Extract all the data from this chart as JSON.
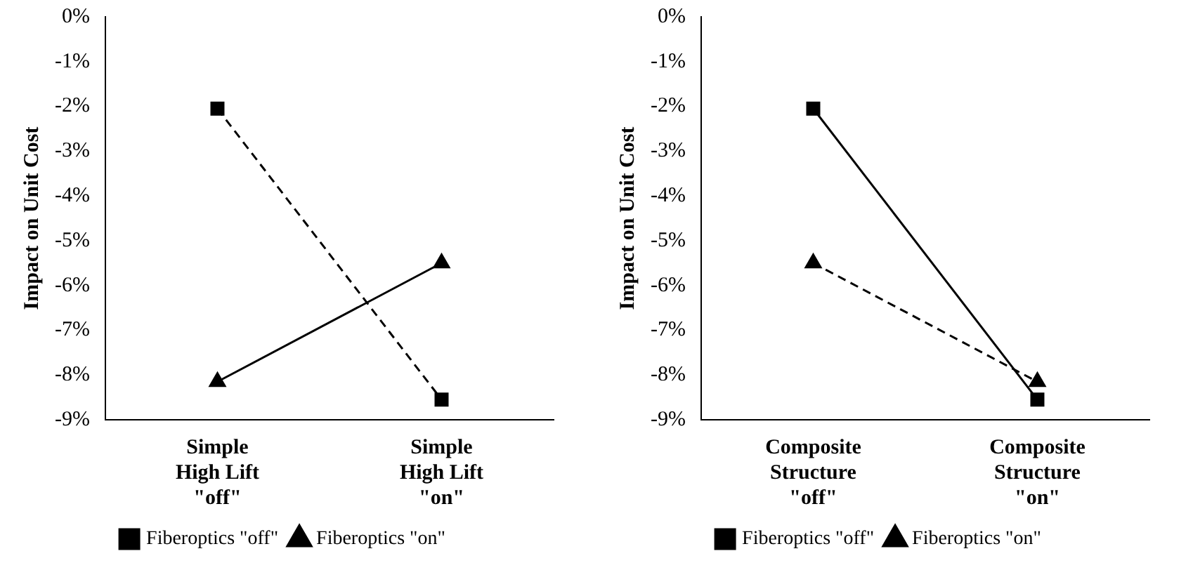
{
  "chart_data": [
    {
      "type": "line",
      "ylabel": "Impact on Unit Cost",
      "categories": [
        "Simple\nHigh Lift\n\"off\"",
        "Simple\nHigh Lift\n\"on\""
      ],
      "ylim": [
        -9,
        0
      ],
      "yticks": [
        {
          "value": 0,
          "label": "0%"
        },
        {
          "value": -1,
          "label": "-1%"
        },
        {
          "value": -2,
          "label": "-2%"
        },
        {
          "value": -3,
          "label": "-3%"
        },
        {
          "value": -4,
          "label": "-4%"
        },
        {
          "value": -5,
          "label": "-5%"
        },
        {
          "value": -6,
          "label": "-6%"
        },
        {
          "value": -7,
          "label": "-7%"
        },
        {
          "value": -8,
          "label": "-8%"
        },
        {
          "value": -9,
          "label": "-9%"
        }
      ],
      "grid": false,
      "legend": "bottom",
      "series": [
        {
          "name": "Fiberoptics \"off\"",
          "color": "#000000",
          "values": [
            -2.05,
            -8.55
          ],
          "marker": "square",
          "line_style": "dashed"
        },
        {
          "name": "Fiberoptics \"on\"",
          "color": "#000000",
          "values": [
            -8.15,
            -5.5
          ],
          "marker": "triangle",
          "line_style": "solid"
        }
      ]
    },
    {
      "type": "line",
      "ylabel": "Impact on Unit Cost",
      "categories": [
        "Composite\nStructure\n\"off\"",
        "Composite\nStructure\n\"on\""
      ],
      "ylim": [
        -9,
        0
      ],
      "yticks": [
        {
          "value": 0,
          "label": "0%"
        },
        {
          "value": -1,
          "label": "-1%"
        },
        {
          "value": -2,
          "label": "-2%"
        },
        {
          "value": -3,
          "label": "-3%"
        },
        {
          "value": -4,
          "label": "-4%"
        },
        {
          "value": -5,
          "label": "-5%"
        },
        {
          "value": -6,
          "label": "-6%"
        },
        {
          "value": -7,
          "label": "-7%"
        },
        {
          "value": -8,
          "label": "-8%"
        },
        {
          "value": -9,
          "label": "-9%"
        }
      ],
      "grid": false,
      "legend": "bottom",
      "series": [
        {
          "name": "Fiberoptics \"off\"",
          "color": "#000000",
          "values": [
            -2.05,
            -8.55
          ],
          "marker": "square",
          "line_style": "solid"
        },
        {
          "name": "Fiberoptics \"on\"",
          "color": "#000000",
          "values": [
            -5.5,
            -8.15
          ],
          "marker": "triangle",
          "line_style": "dashed"
        }
      ]
    }
  ]
}
